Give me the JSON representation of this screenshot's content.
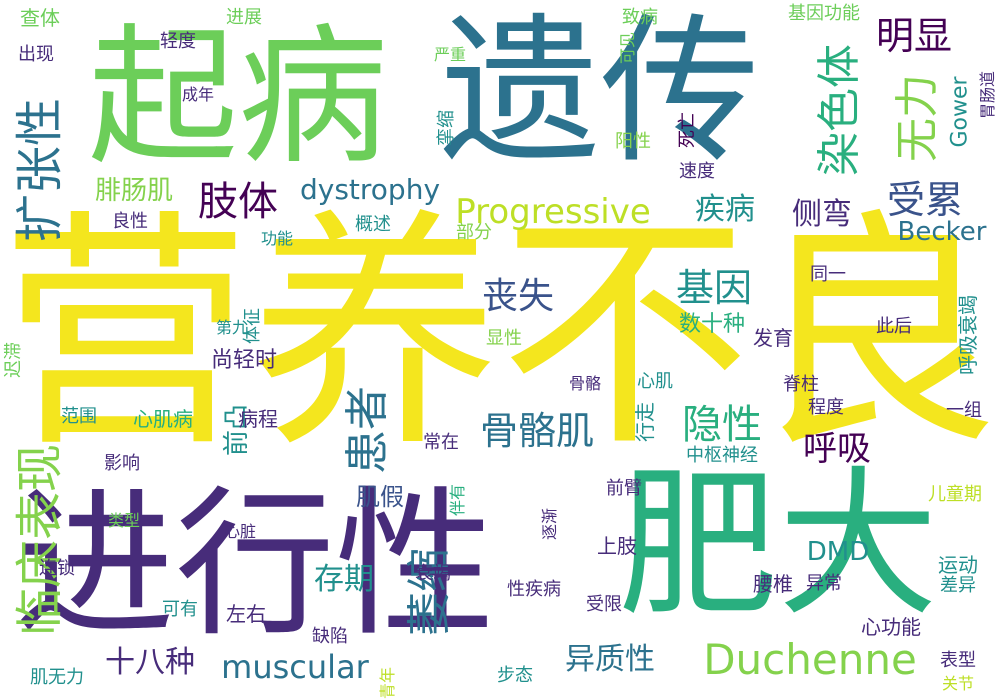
{
  "palette": {
    "yellow": "#f4e61e",
    "lime": "#84d24c",
    "green": "#6cce59",
    "teal_green": "#29af7f",
    "teal": "#21908d",
    "blue_teal": "#2c728e",
    "blue": "#3a538b",
    "indigo": "#472c7a",
    "purple": "#440154",
    "mid_purple": "#482677",
    "yellow_green": "#bddf26"
  },
  "words": [
    {
      "text": "营养不良",
      "color": "yellow",
      "vertical": false
    },
    {
      "text": "进行性",
      "color": "indigo",
      "vertical": false
    },
    {
      "text": "肥大",
      "color": "teal_green",
      "vertical": false
    },
    {
      "text": "遗传",
      "color": "blue_teal",
      "vertical": false
    },
    {
      "text": "起病",
      "color": "green",
      "vertical": false
    },
    {
      "text": "临床表现",
      "color": "lime",
      "vertical": true
    },
    {
      "text": "扩张性",
      "color": "blue_teal",
      "vertical": true
    },
    {
      "text": "染色体",
      "color": "teal_green",
      "vertical": true
    },
    {
      "text": "无力",
      "color": "lime",
      "vertical": true
    },
    {
      "text": "明显",
      "color": "purple",
      "vertical": false
    },
    {
      "text": "受累",
      "color": "blue",
      "vertical": false
    },
    {
      "text": "Duchenne",
      "color": "lime",
      "vertical": false
    },
    {
      "text": "Progressive",
      "color": "yellow_green",
      "vertical": false
    },
    {
      "text": "muscular",
      "color": "blue_teal",
      "vertical": false
    },
    {
      "text": "dystrophy",
      "color": "blue_teal",
      "vertical": false
    },
    {
      "text": "Becker",
      "color": "blue_teal",
      "vertical": false
    },
    {
      "text": "肢体",
      "color": "purple",
      "vertical": false
    },
    {
      "text": "骨骼肌",
      "color": "blue_teal",
      "vertical": false
    },
    {
      "text": "隐性",
      "color": "teal_green",
      "vertical": false
    },
    {
      "text": "患者",
      "color": "blue_teal",
      "vertical": true
    },
    {
      "text": "萎缩",
      "color": "blue_teal",
      "vertical": true
    },
    {
      "text": "基因",
      "color": "teal",
      "vertical": false
    },
    {
      "text": "丧失",
      "color": "blue",
      "vertical": false
    },
    {
      "text": "呼吸",
      "color": "purple",
      "vertical": false
    },
    {
      "text": "侧弯",
      "color": "indigo",
      "vertical": false
    },
    {
      "text": "疾病",
      "color": "teal",
      "vertical": false
    },
    {
      "text": "腓肠肌",
      "color": "lime",
      "vertical": false
    },
    {
      "text": "异质性",
      "color": "blue_teal",
      "vertical": false
    },
    {
      "text": "存期",
      "color": "teal",
      "vertical": false
    },
    {
      "text": "十八种",
      "color": "indigo",
      "vertical": false
    },
    {
      "text": "Gower",
      "color": "teal",
      "vertical": true
    },
    {
      "text": "DMD",
      "color": "teal",
      "vertical": false
    },
    {
      "text": "肌假",
      "color": "blue",
      "vertical": false
    },
    {
      "text": "前凸",
      "color": "teal",
      "vertical": true
    },
    {
      "text": "查体",
      "color": "green",
      "vertical": false
    },
    {
      "text": "进展",
      "color": "green",
      "vertical": false
    },
    {
      "text": "致病",
      "color": "green",
      "vertical": false
    },
    {
      "text": "基因功能",
      "color": "green",
      "vertical": false
    },
    {
      "text": "出现",
      "color": "indigo",
      "vertical": false
    },
    {
      "text": "严重",
      "color": "green",
      "vertical": false
    },
    {
      "text": "可见",
      "color": "green",
      "vertical": true
    },
    {
      "text": "轻度",
      "color": "indigo",
      "vertical": false
    },
    {
      "text": "成年",
      "color": "indigo",
      "vertical": false
    },
    {
      "text": "胃肠道",
      "color": "indigo",
      "vertical": true
    },
    {
      "text": "挛缩",
      "color": "teal",
      "vertical": true
    },
    {
      "text": "死亡",
      "color": "purple",
      "vertical": true
    },
    {
      "text": "阳性",
      "color": "lime",
      "vertical": false
    },
    {
      "text": "速度",
      "color": "indigo",
      "vertical": false
    },
    {
      "text": "良性",
      "color": "indigo",
      "vertical": false
    },
    {
      "text": "功能",
      "color": "teal",
      "vertical": false
    },
    {
      "text": "概述",
      "color": "teal",
      "vertical": false
    },
    {
      "text": "部分",
      "color": "lime",
      "vertical": false
    },
    {
      "text": "同一",
      "color": "indigo",
      "vertical": false
    },
    {
      "text": "迟滞",
      "color": "green",
      "vertical": true
    },
    {
      "text": "体征",
      "color": "teal",
      "vertical": true
    },
    {
      "text": "第九",
      "color": "teal",
      "vertical": false
    },
    {
      "text": "显性",
      "color": "lime",
      "vertical": false
    },
    {
      "text": "数十种",
      "color": "teal_green",
      "vertical": false
    },
    {
      "text": "发育",
      "color": "indigo",
      "vertical": false
    },
    {
      "text": "此后",
      "color": "indigo",
      "vertical": false
    },
    {
      "text": "呼吸衰竭",
      "color": "teal",
      "vertical": true
    },
    {
      "text": "尚轻时",
      "color": "indigo",
      "vertical": false
    },
    {
      "text": "心肌",
      "color": "teal",
      "vertical": false
    },
    {
      "text": "骨骼",
      "color": "indigo",
      "vertical": false
    },
    {
      "text": "脊柱",
      "color": "indigo",
      "vertical": false
    },
    {
      "text": "程度",
      "color": "indigo",
      "vertical": false
    },
    {
      "text": "一组",
      "color": "indigo",
      "vertical": false
    },
    {
      "text": "范围",
      "color": "teal",
      "vertical": false
    },
    {
      "text": "心肌病",
      "color": "teal_green",
      "vertical": false
    },
    {
      "text": "病程",
      "color": "indigo",
      "vertical": false
    },
    {
      "text": "常在",
      "color": "indigo",
      "vertical": false
    },
    {
      "text": "行走",
      "color": "teal",
      "vertical": true
    },
    {
      "text": "中枢神经",
      "color": "teal",
      "vertical": false
    },
    {
      "text": "影响",
      "color": "indigo",
      "vertical": false
    },
    {
      "text": "伴有",
      "color": "teal_green",
      "vertical": true
    },
    {
      "text": "前臂",
      "color": "indigo",
      "vertical": false
    },
    {
      "text": "儿童期",
      "color": "yellow_green",
      "vertical": false
    },
    {
      "text": "类型",
      "color": "green",
      "vertical": false
    },
    {
      "text": "心脏",
      "color": "indigo",
      "vertical": false
    },
    {
      "text": "逐渐",
      "color": "indigo",
      "vertical": true
    },
    {
      "text": "上肢",
      "color": "indigo",
      "vertical": false
    },
    {
      "text": "运动",
      "color": "teal",
      "vertical": false
    },
    {
      "text": "连锁",
      "color": "indigo",
      "vertical": false
    },
    {
      "text": "衰竭",
      "color": "indigo",
      "vertical": false
    },
    {
      "text": "腰椎",
      "color": "indigo",
      "vertical": false
    },
    {
      "text": "异常",
      "color": "indigo",
      "vertical": false
    },
    {
      "text": "差异",
      "color": "teal",
      "vertical": false
    },
    {
      "text": "可有",
      "color": "teal",
      "vertical": false
    },
    {
      "text": "左右",
      "color": "indigo",
      "vertical": false
    },
    {
      "text": "性疾病",
      "color": "indigo",
      "vertical": false
    },
    {
      "text": "受限",
      "color": "indigo",
      "vertical": false
    },
    {
      "text": "缺陷",
      "color": "indigo",
      "vertical": false
    },
    {
      "text": "心功能",
      "color": "indigo",
      "vertical": false
    },
    {
      "text": "表型",
      "color": "indigo",
      "vertical": false
    },
    {
      "text": "肌无力",
      "color": "teal",
      "vertical": false
    },
    {
      "text": "青年",
      "color": "yellow_green",
      "vertical": true
    },
    {
      "text": "步态",
      "color": "teal",
      "vertical": false
    },
    {
      "text": "关节",
      "color": "yellow_green",
      "vertical": false
    }
  ]
}
